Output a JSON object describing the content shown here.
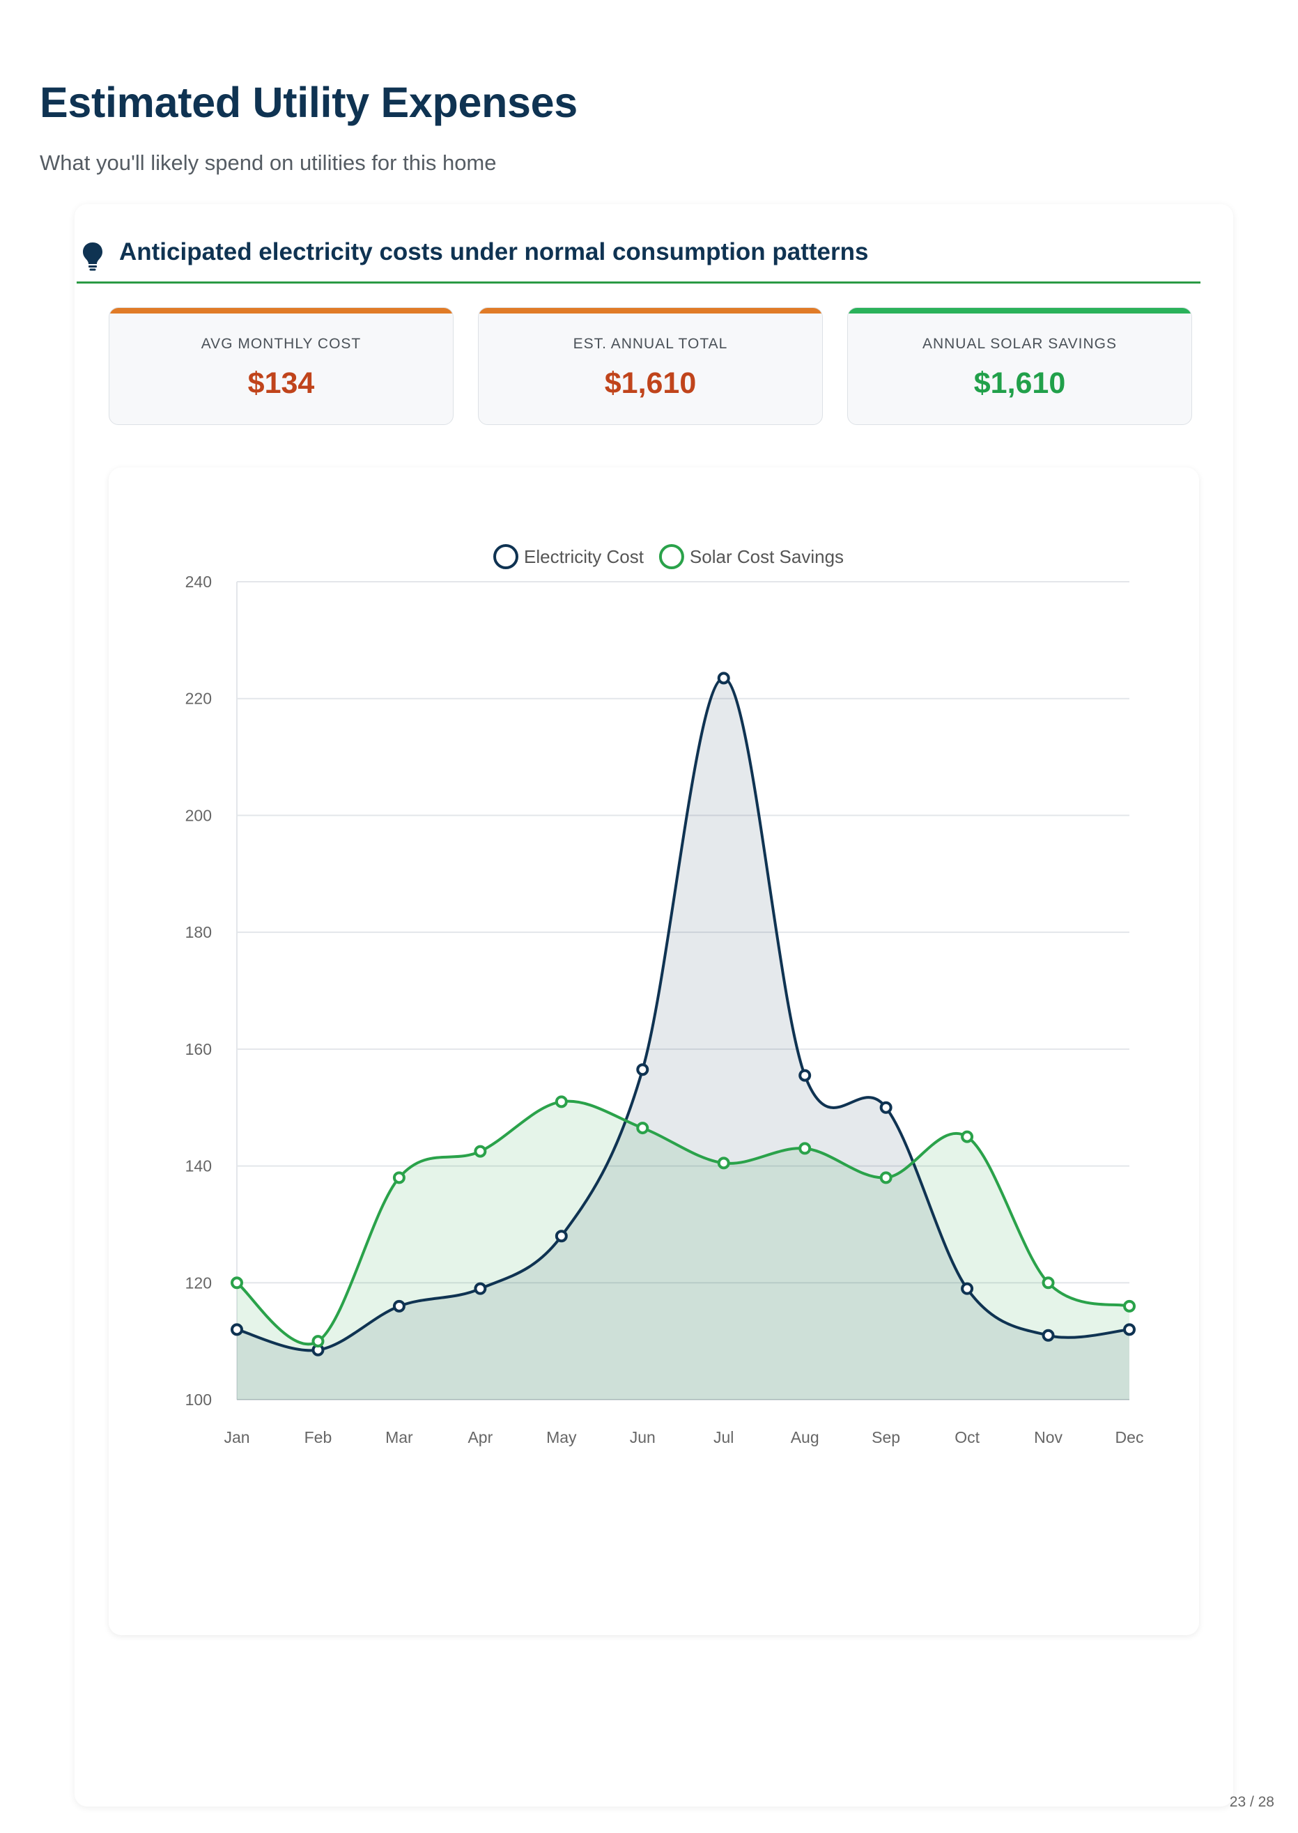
{
  "header": {
    "title": "Estimated Utility Expenses",
    "subtitle": "What you'll likely spend on utilities for this home"
  },
  "section": {
    "title": "Anticipated electricity costs under normal consumption patterns",
    "icon": "lightbulb-icon"
  },
  "metrics": [
    {
      "label": "AVG MONTHLY COST",
      "value": "$134",
      "accent": "#e07b27",
      "value_color": "#c0441b"
    },
    {
      "label": "EST. ANNUAL TOTAL",
      "value": "$1,610",
      "accent": "#e07b27",
      "value_color": "#c0441b"
    },
    {
      "label": "ANNUAL SOLAR SAVINGS",
      "value": "$1,610",
      "accent": "#2ab25a",
      "value_color": "#21a04a"
    }
  ],
  "chart_data": {
    "type": "area",
    "categories": [
      "Jan",
      "Feb",
      "Mar",
      "Apr",
      "May",
      "Jun",
      "Jul",
      "Aug",
      "Sep",
      "Oct",
      "Nov",
      "Dec"
    ],
    "series": [
      {
        "name": "Electricity Cost",
        "color": "#0f3352",
        "values": [
          112,
          108.5,
          116,
          119,
          128,
          156.5,
          223.5,
          155.5,
          150,
          119,
          111,
          112
        ]
      },
      {
        "name": "Solar Cost Savings",
        "color": "#2aa24a",
        "values": [
          120,
          110,
          138,
          142.5,
          151,
          146.5,
          140.5,
          143,
          138,
          145,
          120,
          116
        ]
      }
    ],
    "ylim": [
      100,
      240
    ],
    "yticks": [
      100,
      120,
      140,
      160,
      180,
      200,
      220,
      240
    ],
    "grid": true,
    "legend": "top",
    "xlabel": "",
    "ylabel": ""
  },
  "footer": {
    "page": "23 / 28"
  }
}
